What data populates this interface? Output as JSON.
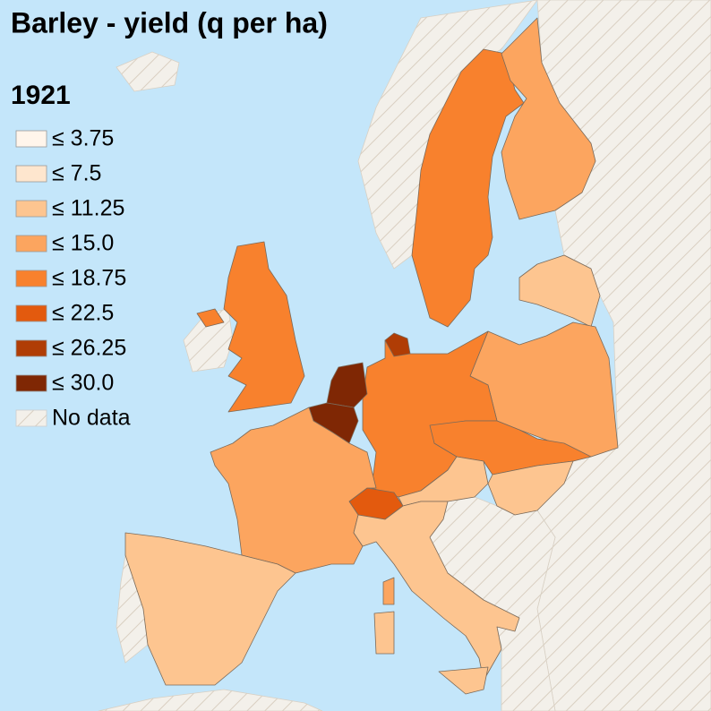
{
  "title": "Barley - yield (q per ha)",
  "year": "1921",
  "legend": {
    "items": [
      {
        "label": "≤ 3.75",
        "color": "#fff5eb"
      },
      {
        "label": "≤ 7.5",
        "color": "#fee6ce"
      },
      {
        "label": "≤ 11.25",
        "color": "#fdc590"
      },
      {
        "label": "≤ 15.0",
        "color": "#fca55f"
      },
      {
        "label": "≤ 18.75",
        "color": "#f8812d"
      },
      {
        "label": "≤ 22.5",
        "color": "#e35a0e"
      },
      {
        "label": "≤ 26.25",
        "color": "#b03d05"
      },
      {
        "label": "≤ 30.0",
        "color": "#7f2704"
      }
    ],
    "no_data": "No data"
  }
}
